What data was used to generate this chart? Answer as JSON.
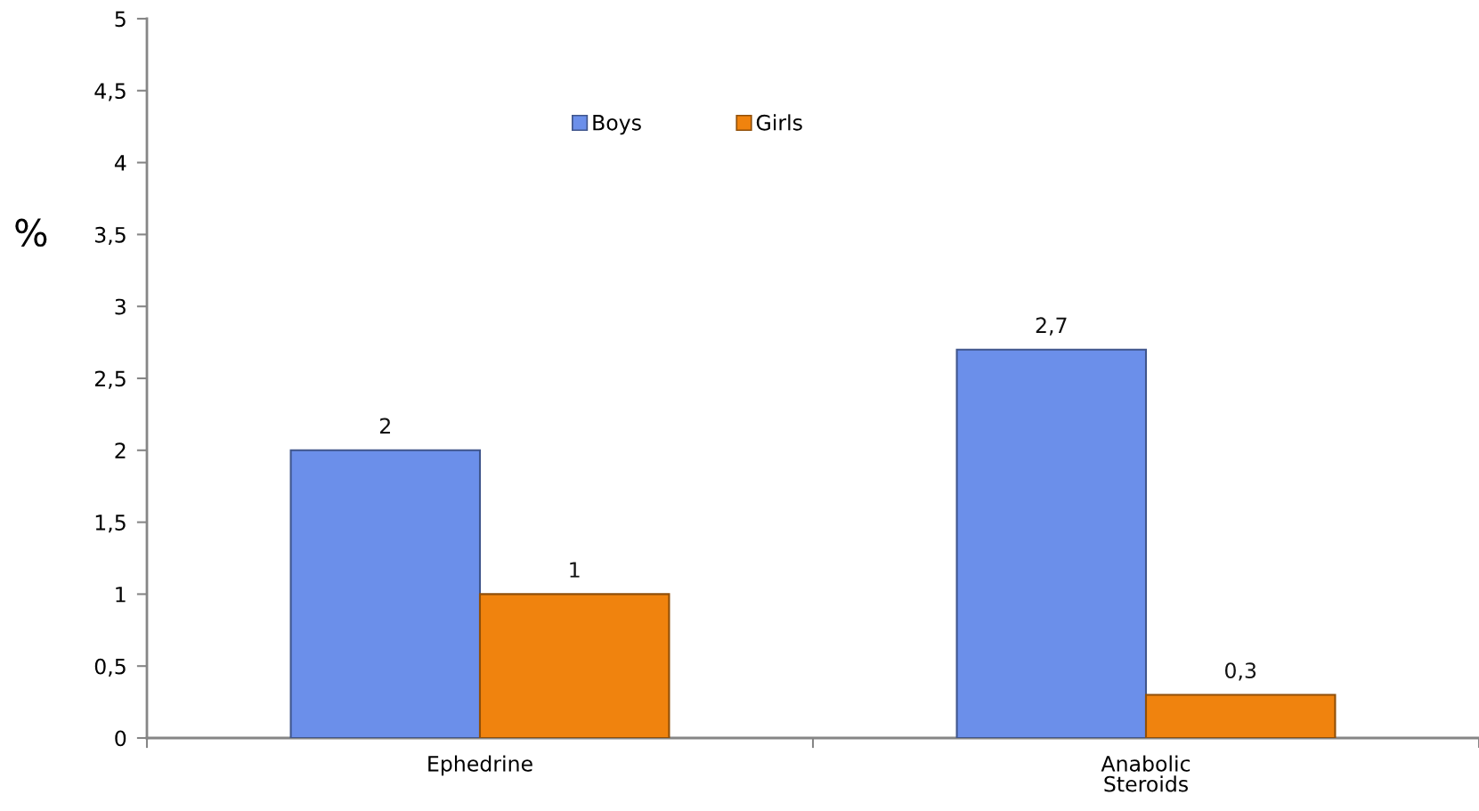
{
  "chart_data": {
    "type": "bar",
    "categories": [
      "Ephedrine",
      "Anabolic\nSteroids"
    ],
    "series": [
      {
        "name": "Boys",
        "color": "#6b8fea",
        "values": [
          2,
          2.7
        ],
        "value_labels": [
          "2",
          "2,7"
        ]
      },
      {
        "name": "Girls",
        "color": "#f0830e",
        "values": [
          1,
          0.3
        ],
        "value_labels": [
          "1",
          "0,3"
        ]
      }
    ],
    "ylabel": "%",
    "ylim": [
      0,
      5
    ],
    "yticks": [
      0,
      {
        "value": 0.5,
        "label": "0,5"
      },
      1,
      {
        "value": 1.5,
        "label": "1,5"
      },
      2,
      {
        "value": 2.5,
        "label": "2,5"
      },
      3,
      {
        "value": 3.5,
        "label": "3,5"
      },
      4,
      {
        "value": 4.5,
        "label": "4,5"
      },
      5
    ],
    "legend": "top"
  }
}
